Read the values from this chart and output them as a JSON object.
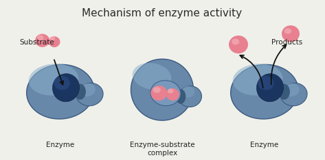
{
  "title": "Mechanism of enzyme activity",
  "title_fontsize": 11,
  "title_color": "#2a2a2a",
  "bg_color": "#f0f0ea",
  "label1": "Substrate",
  "label2": "Enzyme",
  "label3": "Enzyme-substrate\ncomplex",
  "label4": "Enzyme",
  "label5": "Products",
  "enzyme_outer": "#5b7faa",
  "enzyme_mid": "#4a6d99",
  "enzyme_dark": "#1a3560",
  "enzyme_light": "#9ab5d0",
  "enzyme_edge": "#3a5a80",
  "substrate_main": "#d96070",
  "substrate_light": "#f0a8b0",
  "substrate_mid": "#e88090",
  "arrow_color": "#111111",
  "label_fontsize": 7.5,
  "fig_width": 4.73,
  "fig_height": 2.34,
  "dpi": 100
}
